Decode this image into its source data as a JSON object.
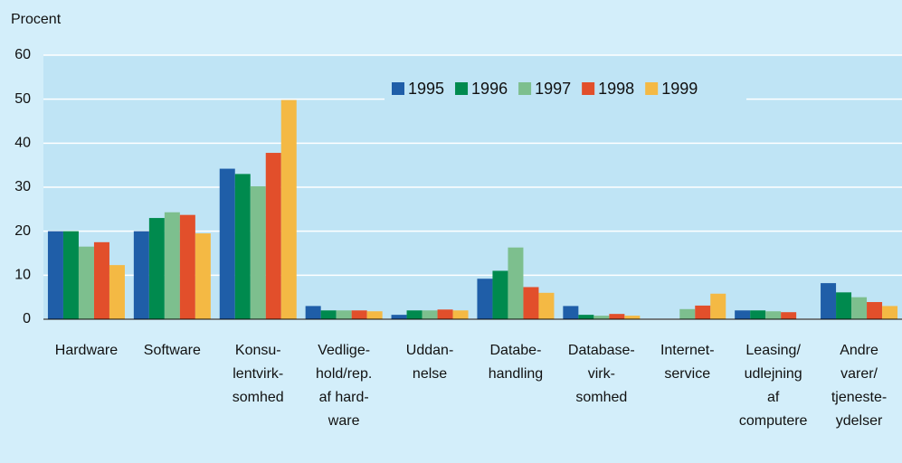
{
  "chart_data": {
    "type": "bar",
    "y_label": "Procent",
    "categories": [
      [
        "Hardware"
      ],
      [
        "Software"
      ],
      [
        "Konsu-",
        "lentvirk-",
        "somhed"
      ],
      [
        "Vedlige-",
        "hold/rep.",
        "af hard-",
        "ware"
      ],
      [
        "Uddan-",
        "nelse"
      ],
      [
        "Databe-",
        "handling"
      ],
      [
        "Database-",
        "virk-",
        "somhed"
      ],
      [
        "Internet-",
        "service"
      ],
      [
        "Leasing/",
        "udlejning",
        "af",
        "computere"
      ],
      [
        "Andre",
        "varer/",
        "tjeneste-",
        "ydelser"
      ]
    ],
    "series": [
      {
        "name": "1995",
        "color": "#1f5ea8",
        "values": [
          20,
          20,
          34.2,
          3,
          1,
          9.2,
          3,
          null,
          2,
          8.2
        ]
      },
      {
        "name": "1996",
        "color": "#008a4e",
        "values": [
          20,
          23,
          33,
          2,
          2,
          11,
          1,
          null,
          2,
          6.1
        ]
      },
      {
        "name": "1997",
        "color": "#7dbf8e",
        "values": [
          16.5,
          24.3,
          30.2,
          2,
          2,
          16.3,
          0.8,
          2.3,
          1.8,
          5
        ]
      },
      {
        "name": "1998",
        "color": "#e24f2b",
        "values": [
          17.5,
          23.7,
          37.8,
          2,
          2.2,
          7.3,
          1.2,
          3.1,
          1.6,
          3.9
        ]
      },
      {
        "name": "1999",
        "color": "#f4b944",
        "values": [
          12.3,
          19.5,
          49.8,
          1.8,
          2,
          6,
          0.8,
          5.8,
          null,
          3
        ]
      }
    ],
    "ylim": [
      0,
      60
    ],
    "yticks": [
      0,
      10,
      20,
      30,
      40,
      50,
      60
    ],
    "grid": true
  }
}
